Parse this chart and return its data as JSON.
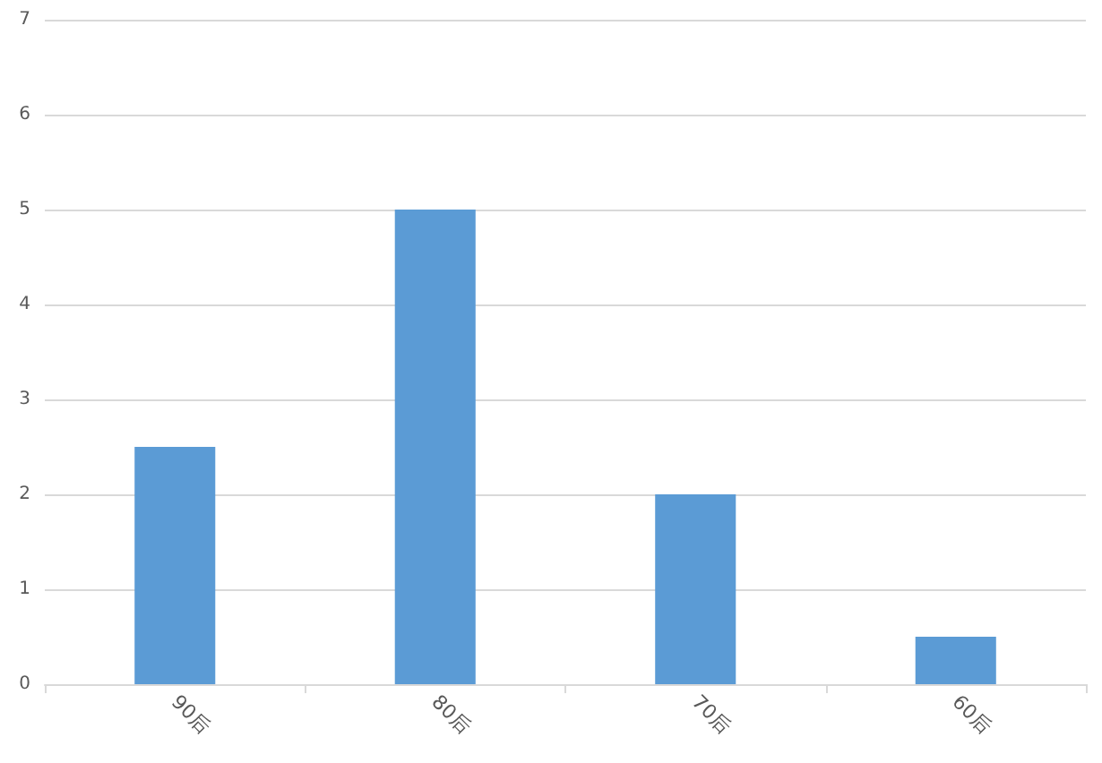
{
  "chart_data": {
    "type": "bar",
    "categories": [
      "90后",
      "80后",
      "70后",
      "60后"
    ],
    "values": [
      2.5,
      5,
      2,
      0.5
    ],
    "color": "#5b9bd5",
    "ylim": [
      0,
      7
    ],
    "yticks": [
      0,
      1,
      2,
      3,
      4,
      5,
      6,
      7
    ],
    "grid": "y"
  }
}
